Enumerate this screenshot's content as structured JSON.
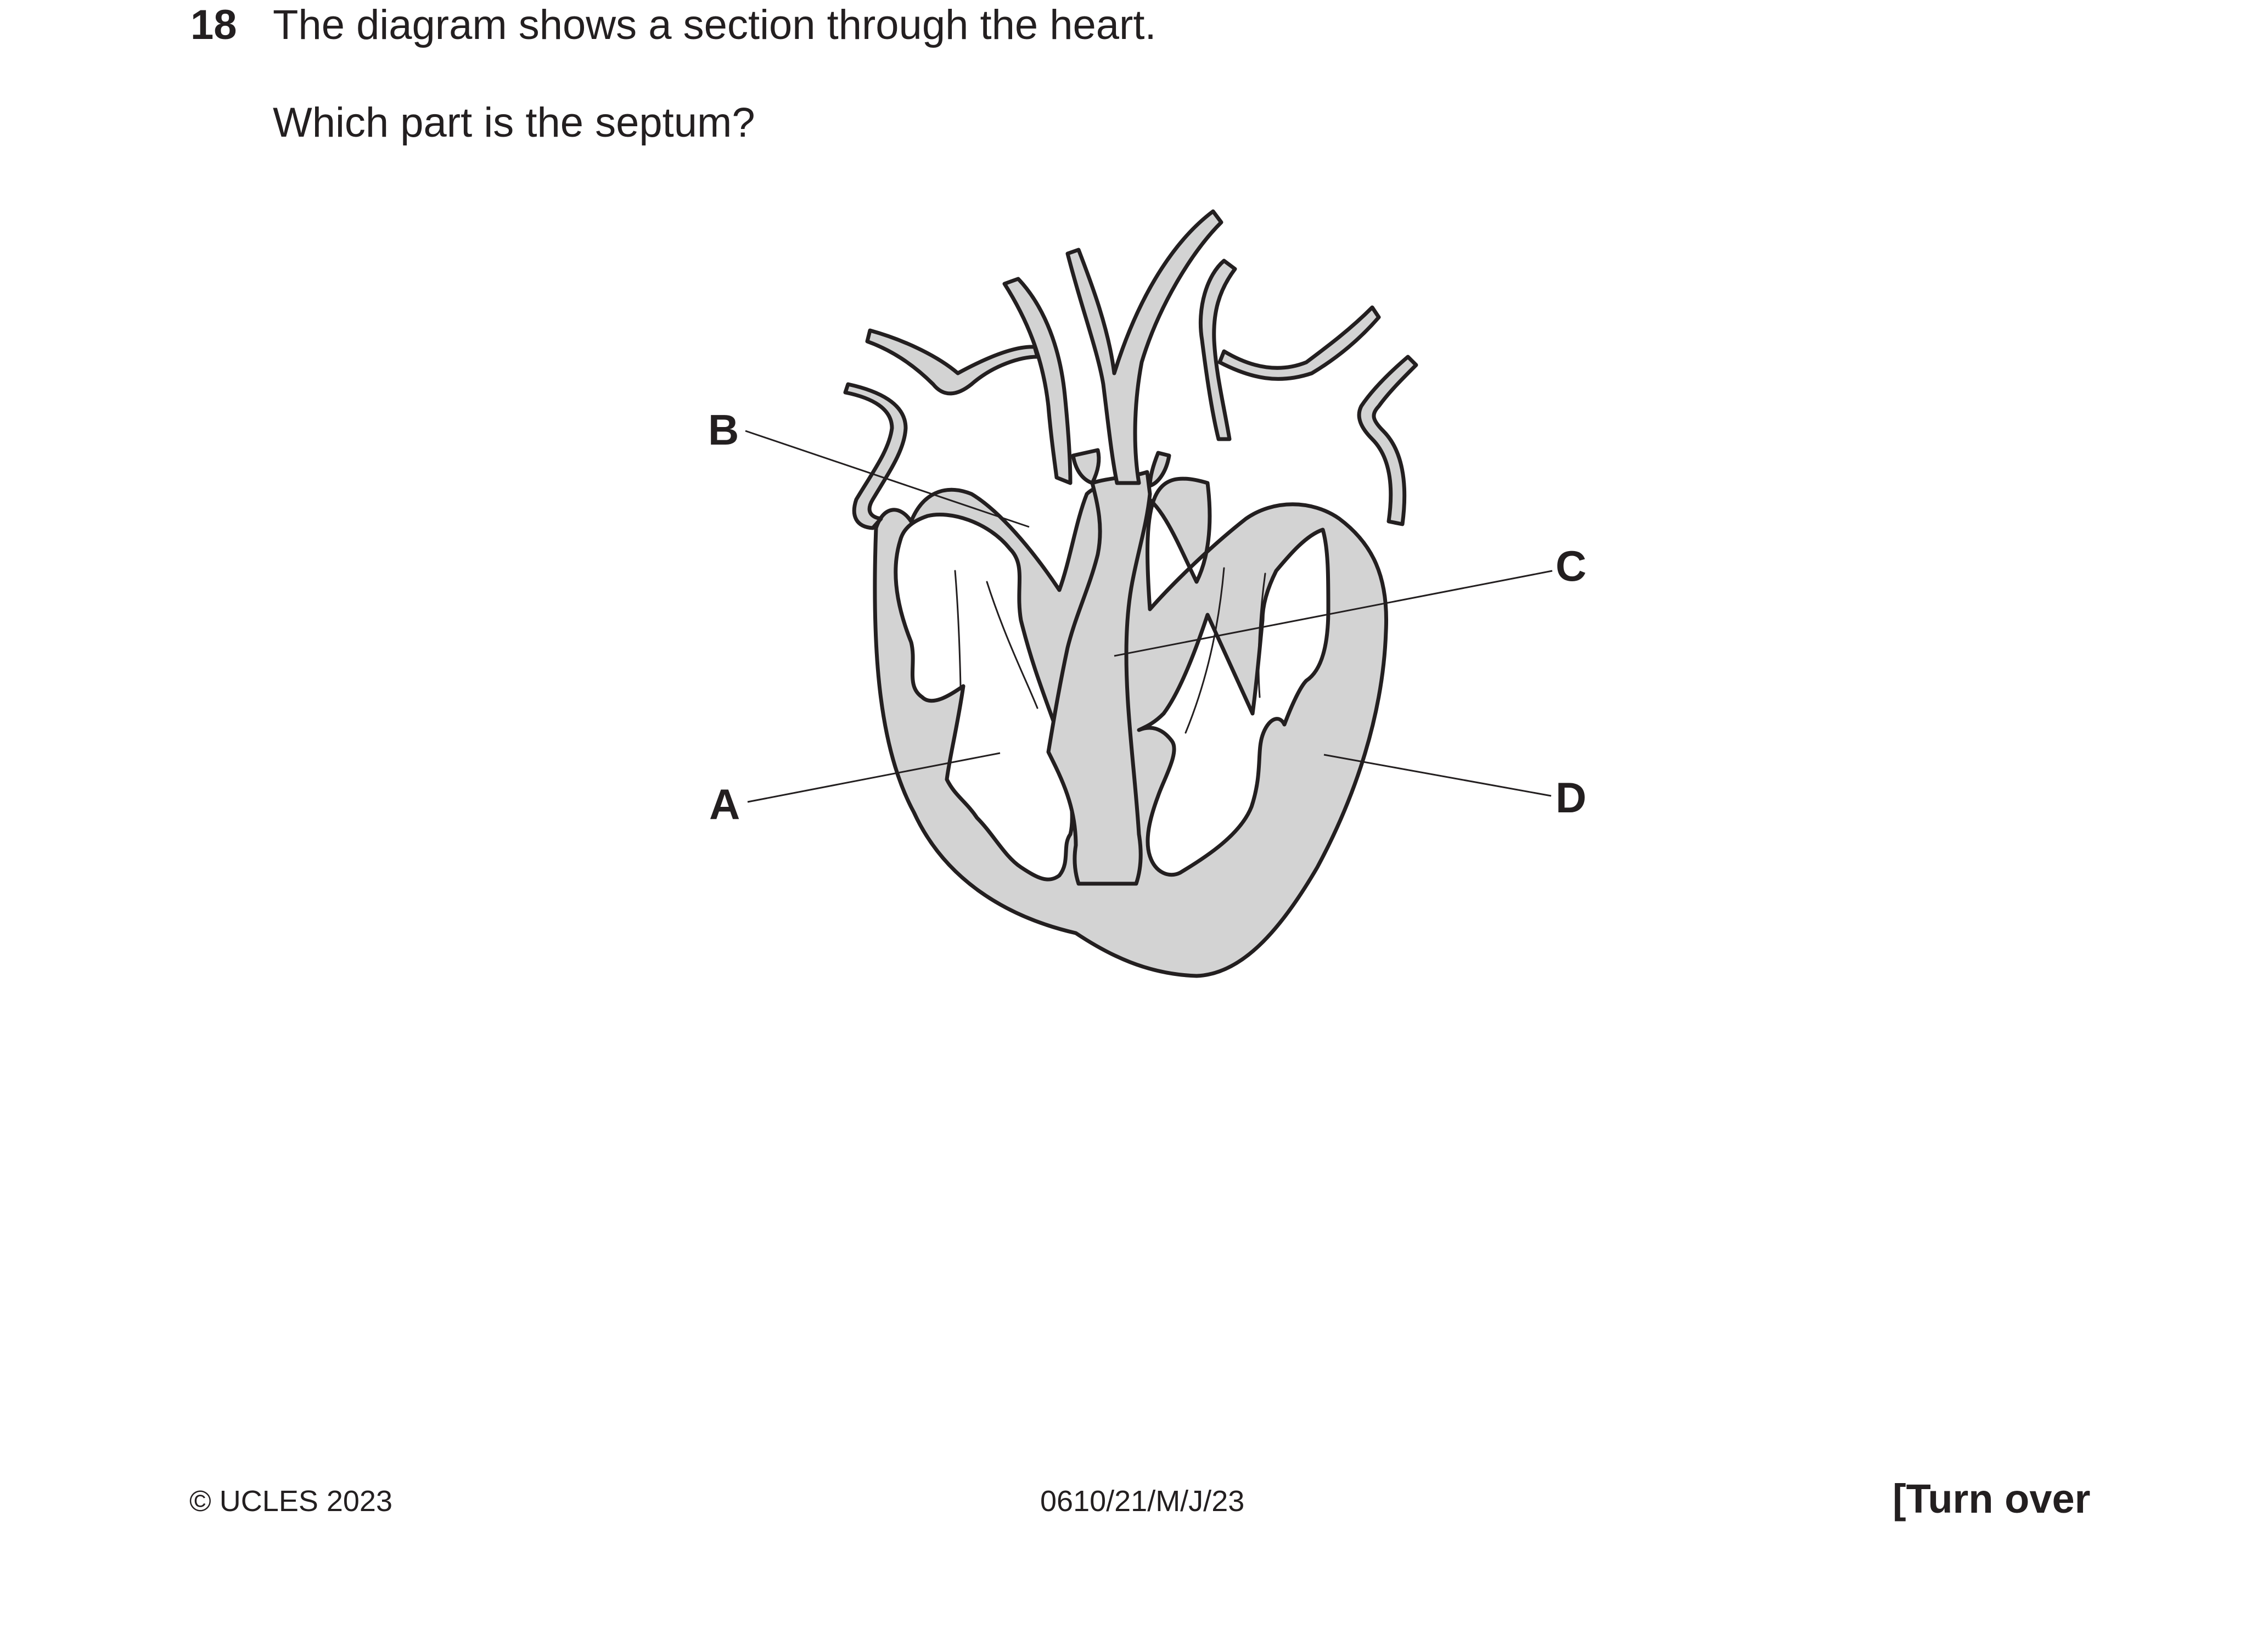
{
  "question": {
    "number": "18",
    "stem": "The diagram shows a section through the heart.",
    "prompt": "Which part is the septum?"
  },
  "diagram": {
    "labels": {
      "a": "A",
      "b": "B",
      "c": "C",
      "d": "D"
    },
    "colors": {
      "tissue_fill": "#d3d3d3",
      "outline": "#231f20"
    }
  },
  "footer": {
    "copyright": "© UCLES 2023",
    "paper_code": "0610/21/M/J/23",
    "turn_over": "[Turn over"
  }
}
